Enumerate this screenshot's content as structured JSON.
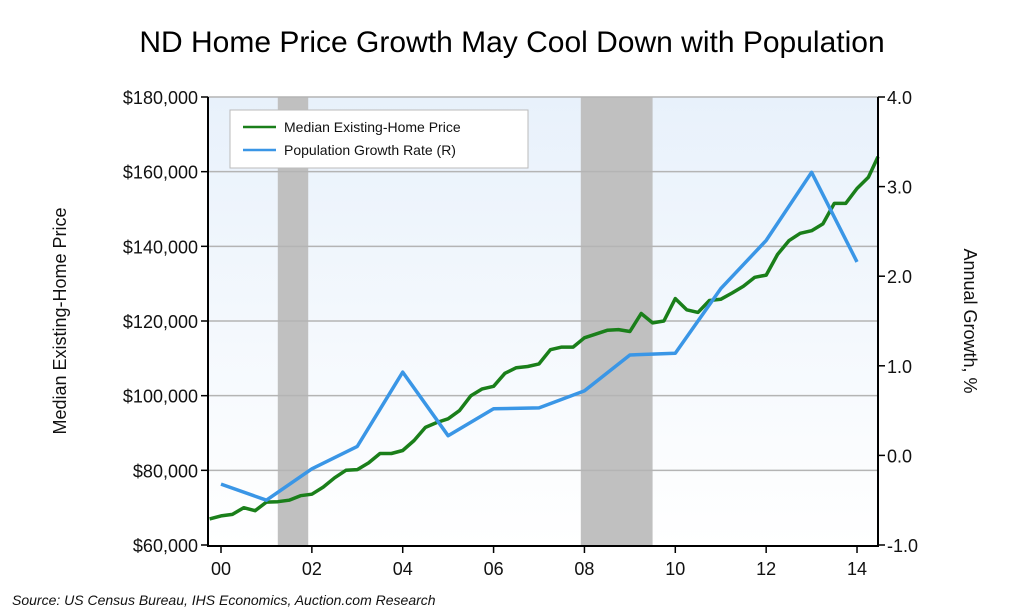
{
  "chart_data": {
    "type": "line",
    "title": "ND Home Price Growth May Cool Down with Population",
    "source": "Source: US Census Bureau, IHS Economics, Auction.com Research",
    "xlabel": "",
    "ylabel_left": "Median Existing-Home Price",
    "ylabel_right": "Annual Growth, %",
    "x_range": [
      1999.75,
      2014.6
    ],
    "x_ticks": [
      {
        "value": 2000,
        "label": "00"
      },
      {
        "value": 2002,
        "label": "02"
      },
      {
        "value": 2004,
        "label": "04"
      },
      {
        "value": 2006,
        "label": "06"
      },
      {
        "value": 2008,
        "label": "08"
      },
      {
        "value": 2010,
        "label": "10"
      },
      {
        "value": 2012,
        "label": "12"
      },
      {
        "value": 2014,
        "label": "14"
      }
    ],
    "ylim_left": [
      60000,
      180000
    ],
    "y_ticks_left": [
      {
        "value": 60000,
        "label": "$60,000"
      },
      {
        "value": 80000,
        "label": "$80,000"
      },
      {
        "value": 100000,
        "label": "$100,000"
      },
      {
        "value": 120000,
        "label": "$120,000"
      },
      {
        "value": 140000,
        "label": "$140,000"
      },
      {
        "value": 160000,
        "label": "$160,000"
      },
      {
        "value": 180000,
        "label": "$180,000"
      }
    ],
    "ylim_right": [
      -1.0,
      4.0
    ],
    "y_ticks_right": [
      {
        "value": -1.0,
        "label": "-1.0"
      },
      {
        "value": 0.0,
        "label": "0.0"
      },
      {
        "value": 1.0,
        "label": "1.0"
      },
      {
        "value": 2.0,
        "label": "2.0"
      },
      {
        "value": 3.0,
        "label": "3.0"
      },
      {
        "value": 4.0,
        "label": "4.0"
      }
    ],
    "grid": true,
    "legend_position": "top-left",
    "recessions": [
      {
        "start": 2001.25,
        "end": 2001.92
      },
      {
        "start": 2007.92,
        "end": 2009.5
      }
    ],
    "series": [
      {
        "name": "Median Existing-Home Price",
        "axis": "left",
        "color": "#1a7f1a",
        "x": [
          1999.75,
          2000.0,
          2000.25,
          2000.5,
          2000.75,
          2001.0,
          2001.25,
          2001.5,
          2001.75,
          2002.0,
          2002.25,
          2002.5,
          2002.75,
          2003.0,
          2003.25,
          2003.5,
          2003.75,
          2004.0,
          2004.25,
          2004.5,
          2004.75,
          2005.0,
          2005.25,
          2005.5,
          2005.75,
          2006.0,
          2006.25,
          2006.5,
          2006.75,
          2007.0,
          2007.25,
          2007.5,
          2007.75,
          2008.0,
          2008.25,
          2008.5,
          2008.75,
          2009.0,
          2009.25,
          2009.5,
          2009.75,
          2010.0,
          2010.25,
          2010.5,
          2010.75,
          2011.0,
          2011.25,
          2011.5,
          2011.75,
          2012.0,
          2012.25,
          2012.5,
          2012.75,
          2013.0,
          2013.25,
          2013.5,
          2013.75,
          2014.0,
          2014.25,
          2014.5
        ],
        "values": [
          67000,
          67800,
          68200,
          70000,
          69200,
          71500,
          71600,
          72000,
          73200,
          73600,
          75500,
          78000,
          80000,
          80200,
          82000,
          84500,
          84500,
          85300,
          88000,
          91500,
          92800,
          93800,
          96000,
          100000,
          101800,
          102500,
          106000,
          107500,
          107800,
          108500,
          112300,
          113000,
          113000,
          115500,
          116500,
          117500,
          117700,
          117200,
          122000,
          119500,
          120000,
          126000,
          123000,
          122300,
          125500,
          125800,
          127500,
          129300,
          131700,
          132300,
          137800,
          141500,
          143500,
          144200,
          146000,
          151500,
          151500,
          155500,
          158500,
          164000
        ]
      },
      {
        "name": "Population Growth Rate (R)",
        "axis": "right",
        "color": "#3a96e6",
        "x": [
          2000,
          2001,
          2002,
          2003,
          2004,
          2005,
          2006,
          2007,
          2008,
          2009,
          2010,
          2011,
          2012,
          2013,
          2014
        ],
        "values": [
          -0.32,
          -0.5,
          -0.15,
          0.1,
          0.93,
          0.22,
          0.52,
          0.53,
          0.72,
          1.12,
          1.14,
          1.86,
          2.4,
          3.16,
          2.16
        ]
      }
    ]
  }
}
